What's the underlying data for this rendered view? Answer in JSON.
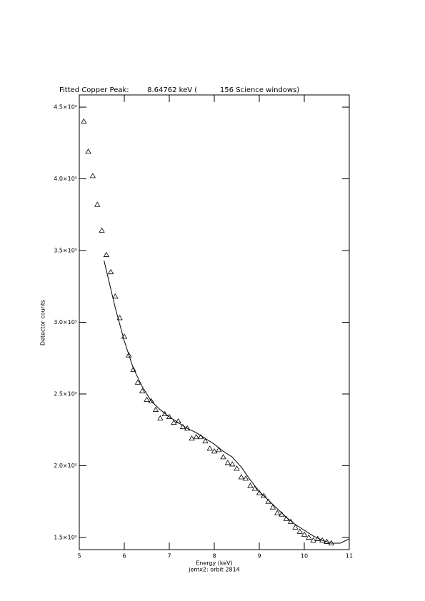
{
  "chart_data": {
    "type": "scatter",
    "title": "Fitted Copper Peak:        8.64762 keV (          156 Science windows)",
    "x_label": "Energy (keV)",
    "subtitle": "jemx2: orbit 2814",
    "y_label": "Detector counts",
    "xlim": [
      5,
      11
    ],
    "xticks": [
      5,
      6,
      7,
      8,
      9,
      10,
      11
    ],
    "ylim": [
      141500,
      458500
    ],
    "yticks": [
      {
        "value": 150000,
        "label": "1.5×10⁵"
      },
      {
        "value": 200000,
        "label": "2.0×10⁵"
      },
      {
        "value": 250000,
        "label": "2.5×10⁵"
      },
      {
        "value": 300000,
        "label": "3.0×10⁵"
      },
      {
        "value": 350000,
        "label": "3.5×10⁵"
      },
      {
        "value": 400000,
        "label": "4.0×10⁵"
      },
      {
        "value": 450000,
        "label": "4.5×10⁵"
      }
    ],
    "series": [
      {
        "type": "scatter",
        "color": "#000000",
        "x": [
          5.1,
          5.2,
          5.3,
          5.4,
          5.5,
          5.6,
          5.7,
          5.8,
          5.9,
          6.0,
          6.1,
          6.2,
          6.3,
          6.4,
          6.5,
          6.6,
          6.7,
          6.8,
          6.9,
          7.0,
          7.1,
          7.2,
          7.3,
          7.4,
          7.5,
          7.6,
          7.7,
          7.8,
          7.9,
          8.0,
          8.1,
          8.2,
          8.3,
          8.4,
          8.5,
          8.6,
          8.7,
          8.8,
          8.9,
          9.0,
          9.1,
          9.2,
          9.3,
          9.4,
          9.5,
          9.6,
          9.7,
          9.8,
          9.9,
          10.0,
          10.1,
          10.2,
          10.3,
          10.4,
          10.5,
          10.6
        ],
        "values": [
          440000,
          419000,
          402000,
          382000,
          364000,
          347000,
          335000,
          318000,
          303000,
          290000,
          277000,
          267000,
          258000,
          252000,
          246000,
          245000,
          239000,
          233000,
          236000,
          234000,
          230000,
          231000,
          227000,
          226000,
          219000,
          220000,
          220000,
          217000,
          212000,
          210000,
          211000,
          206000,
          202000,
          201000,
          198000,
          192000,
          191000,
          186000,
          184000,
          181000,
          179000,
          175000,
          171000,
          167000,
          166000,
          163000,
          161000,
          157000,
          154000,
          152000,
          150000,
          148000,
          149000,
          148000,
          147000,
          146000
        ]
      },
      {
        "type": "line",
        "color": "#000000",
        "x": [
          5.55,
          5.8,
          6.0,
          6.2,
          6.4,
          6.6,
          6.8,
          7.0,
          7.2,
          7.4,
          7.6,
          7.8,
          8.0,
          8.2,
          8.4,
          8.6,
          8.8,
          9.0,
          9.2,
          9.4,
          9.6,
          9.8,
          10.0,
          10.2,
          10.4,
          10.6,
          10.8,
          11.0
        ],
        "values": [
          343000,
          310000,
          287000,
          268000,
          255000,
          245000,
          239000,
          234000,
          230000,
          226000,
          223000,
          219000,
          215000,
          210000,
          206000,
          199000,
          190000,
          182000,
          176000,
          170000,
          164000,
          159000,
          155000,
          151000,
          148000,
          146000,
          146000,
          149000
        ]
      }
    ]
  }
}
